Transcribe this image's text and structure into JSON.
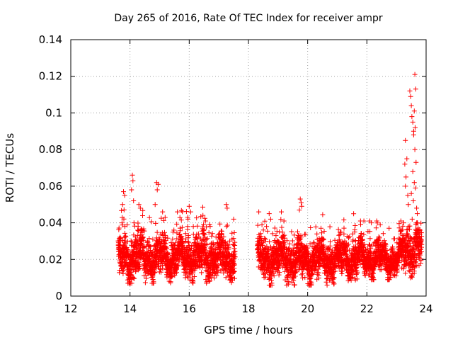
{
  "chart_data": {
    "type": "scatter",
    "title": "Day 265 of 2016, Rate Of TEC Index for receiver ampr",
    "xlabel": "GPS time / hours",
    "ylabel": "ROTI / TECUs",
    "xlim": [
      12,
      24
    ],
    "ylim": [
      0,
      0.14
    ],
    "xticks": [
      12,
      14,
      16,
      18,
      20,
      22,
      24
    ],
    "xtick_labels": [
      "12",
      "14",
      "16",
      "18",
      "20",
      "22",
      "24"
    ],
    "yticks": [
      0,
      0.02,
      0.04,
      0.06,
      0.08,
      0.1,
      0.12,
      0.14
    ],
    "ytick_labels": [
      "0",
      "0.02",
      "0.04",
      "0.06",
      "0.08",
      "0.1",
      "0.12",
      "0.14"
    ],
    "grid": true,
    "marker": "+",
    "color": "#ff0000",
    "series": [
      {
        "name": "ROTI",
        "segments": [
          {
            "start": 13.6,
            "end": 17.55,
            "base": 0.021,
            "spread": 0.009,
            "min": 0.007,
            "max": 0.05
          },
          {
            "start": 18.3,
            "end": 21.7,
            "base": 0.02,
            "spread": 0.009,
            "min": 0.006,
            "max": 0.046
          },
          {
            "start": 21.7,
            "end": 23.2,
            "base": 0.02,
            "spread": 0.007,
            "min": 0.009,
            "max": 0.041
          },
          {
            "start": 23.2,
            "end": 23.85,
            "base": 0.026,
            "spread": 0.01,
            "min": 0.01,
            "max": 0.04
          }
        ],
        "peaks": [
          {
            "x": 13.78,
            "y": 0.057
          },
          {
            "x": 13.82,
            "y": 0.055
          },
          {
            "x": 13.75,
            "y": 0.05
          },
          {
            "x": 13.73,
            "y": 0.04
          },
          {
            "x": 14.08,
            "y": 0.066
          },
          {
            "x": 14.1,
            "y": 0.063
          },
          {
            "x": 14.05,
            "y": 0.058
          },
          {
            "x": 14.12,
            "y": 0.052
          },
          {
            "x": 14.3,
            "y": 0.05
          },
          {
            "x": 14.35,
            "y": 0.048
          },
          {
            "x": 14.9,
            "y": 0.062
          },
          {
            "x": 14.95,
            "y": 0.061
          },
          {
            "x": 14.92,
            "y": 0.058
          },
          {
            "x": 14.85,
            "y": 0.05
          },
          {
            "x": 15.1,
            "y": 0.046
          },
          {
            "x": 15.6,
            "y": 0.046
          },
          {
            "x": 16.0,
            "y": 0.049
          },
          {
            "x": 16.05,
            "y": 0.046
          },
          {
            "x": 15.95,
            "y": 0.043
          },
          {
            "x": 16.55,
            "y": 0.041
          },
          {
            "x": 17.25,
            "y": 0.05
          },
          {
            "x": 17.28,
            "y": 0.048
          },
          {
            "x": 17.5,
            "y": 0.042
          },
          {
            "x": 18.7,
            "y": 0.045
          },
          {
            "x": 18.75,
            "y": 0.042
          },
          {
            "x": 19.2,
            "y": 0.041
          },
          {
            "x": 19.75,
            "y": 0.053
          },
          {
            "x": 19.78,
            "y": 0.051
          },
          {
            "x": 19.8,
            "y": 0.049
          },
          {
            "x": 19.72,
            "y": 0.047
          },
          {
            "x": 20.45,
            "y": 0.037
          },
          {
            "x": 21.9,
            "y": 0.041
          },
          {
            "x": 22.1,
            "y": 0.041
          },
          {
            "x": 22.15,
            "y": 0.04
          },
          {
            "x": 22.45,
            "y": 0.039
          },
          {
            "x": 22.75,
            "y": 0.037
          },
          {
            "x": 23.15,
            "y": 0.041
          },
          {
            "x": 23.3,
            "y": 0.085
          },
          {
            "x": 23.35,
            "y": 0.075
          },
          {
            "x": 23.28,
            "y": 0.072
          },
          {
            "x": 23.32,
            "y": 0.065
          },
          {
            "x": 23.3,
            "y": 0.06
          },
          {
            "x": 23.38,
            "y": 0.055
          },
          {
            "x": 23.4,
            "y": 0.05
          },
          {
            "x": 23.45,
            "y": 0.112
          },
          {
            "x": 23.48,
            "y": 0.109
          },
          {
            "x": 23.5,
            "y": 0.104
          },
          {
            "x": 23.52,
            "y": 0.098
          },
          {
            "x": 23.55,
            "y": 0.095
          },
          {
            "x": 23.58,
            "y": 0.09
          },
          {
            "x": 23.62,
            "y": 0.121
          },
          {
            "x": 23.65,
            "y": 0.113
          },
          {
            "x": 23.6,
            "y": 0.101
          },
          {
            "x": 23.63,
            "y": 0.092
          },
          {
            "x": 23.58,
            "y": 0.088
          },
          {
            "x": 23.62,
            "y": 0.08
          },
          {
            "x": 23.66,
            "y": 0.073
          },
          {
            "x": 23.55,
            "y": 0.068
          },
          {
            "x": 23.6,
            "y": 0.062
          },
          {
            "x": 23.64,
            "y": 0.059
          },
          {
            "x": 23.5,
            "y": 0.056
          },
          {
            "x": 23.57,
            "y": 0.052
          },
          {
            "x": 23.68,
            "y": 0.048
          },
          {
            "x": 23.7,
            "y": 0.045
          },
          {
            "x": 23.53,
            "y": 0.042
          }
        ]
      }
    ]
  }
}
